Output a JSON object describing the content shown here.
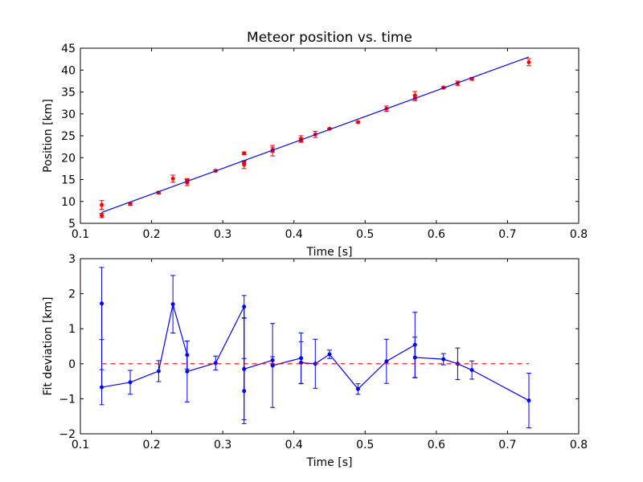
{
  "chart_data": [
    {
      "type": "scatter",
      "title": "Meteor position vs. time",
      "xlabel": "Time [s]",
      "ylabel": "Position [km]",
      "xlim": [
        0.1,
        0.8
      ],
      "ylim": [
        5,
        45
      ],
      "xticks": [
        "0.1",
        "0.2",
        "0.3",
        "0.4",
        "0.5",
        "0.6",
        "0.7",
        "0.8"
      ],
      "yticks": [
        "5",
        "10",
        "15",
        "20",
        "25",
        "30",
        "35",
        "40",
        "45"
      ],
      "colors": {
        "points": "#ff0000",
        "fit": "#0000ff"
      },
      "series": [
        {
          "kind": "errorbar-points",
          "x": [
            0.13,
            0.13,
            0.17,
            0.21,
            0.23,
            0.25,
            0.25,
            0.29,
            0.33,
            0.33,
            0.33,
            0.37,
            0.37,
            0.41,
            0.41,
            0.43,
            0.45,
            0.49,
            0.53,
            0.57,
            0.57,
            0.61,
            0.63,
            0.65,
            0.73
          ],
          "y": [
            9.2,
            6.8,
            9.4,
            12.0,
            15.2,
            14.8,
            14.3,
            17.0,
            21.0,
            19.0,
            18.4,
            21.8,
            21.6,
            24.3,
            24.0,
            25.3,
            26.6,
            28.1,
            31.2,
            34.2,
            33.6,
            36.0,
            37.0,
            38.0,
            41.8
          ],
          "yerr": [
            1.0,
            0.5,
            0.3,
            0.3,
            0.8,
            0.4,
            0.7,
            0.2,
            0.3,
            0.3,
            0.9,
            0.6,
            1.2,
            0.7,
            0.5,
            0.7,
            0.1,
            0.2,
            0.6,
            0.9,
            0.6,
            0.2,
            0.5,
            0.3,
            0.8
          ]
        },
        {
          "kind": "line",
          "x": [
            0.13,
            0.73
          ],
          "y": [
            7.5,
            43.0
          ]
        }
      ]
    },
    {
      "type": "line",
      "xlabel": "Time [s]",
      "ylabel": "Fit deviation [km]",
      "xlim": [
        0.1,
        0.8
      ],
      "ylim": [
        -2,
        3
      ],
      "xticks": [
        "0.1",
        "0.2",
        "0.3",
        "0.4",
        "0.5",
        "0.6",
        "0.7",
        "0.8"
      ],
      "yticks": [
        "−2",
        "−1",
        "0",
        "1",
        "2",
        "3"
      ],
      "colors": {
        "series": "#0000ff",
        "zero": "#ff0000"
      },
      "series": [
        {
          "kind": "errorbar-line",
          "x": [
            0.13,
            0.13,
            0.17,
            0.21,
            0.23,
            0.25,
            0.25,
            0.29,
            0.33,
            0.33,
            0.33,
            0.37,
            0.37,
            0.41,
            0.41,
            0.43,
            0.45,
            0.49,
            0.53,
            0.57,
            0.57,
            0.61,
            0.63,
            0.65,
            0.73
          ],
          "y": [
            1.72,
            -0.67,
            -0.53,
            -0.21,
            1.7,
            0.25,
            -0.22,
            0.02,
            1.63,
            -0.78,
            -0.15,
            0.1,
            -0.05,
            0.16,
            0.03,
            0.0,
            0.27,
            -0.72,
            0.07,
            0.54,
            0.18,
            0.13,
            0.0,
            -0.18,
            -1.05
          ],
          "yerr": [
            1.03,
            0.5,
            0.34,
            0.3,
            0.82,
            0.4,
            0.87,
            0.2,
            0.32,
            0.93,
            1.45,
            0.1,
            1.2,
            0.72,
            0.6,
            0.7,
            0.12,
            0.15,
            0.63,
            0.93,
            0.58,
            0.16,
            0.45,
            0.26,
            0.78
          ]
        },
        {
          "kind": "reference-line",
          "x": [
            0.13,
            0.73
          ],
          "y": [
            0,
            0
          ]
        }
      ]
    }
  ]
}
